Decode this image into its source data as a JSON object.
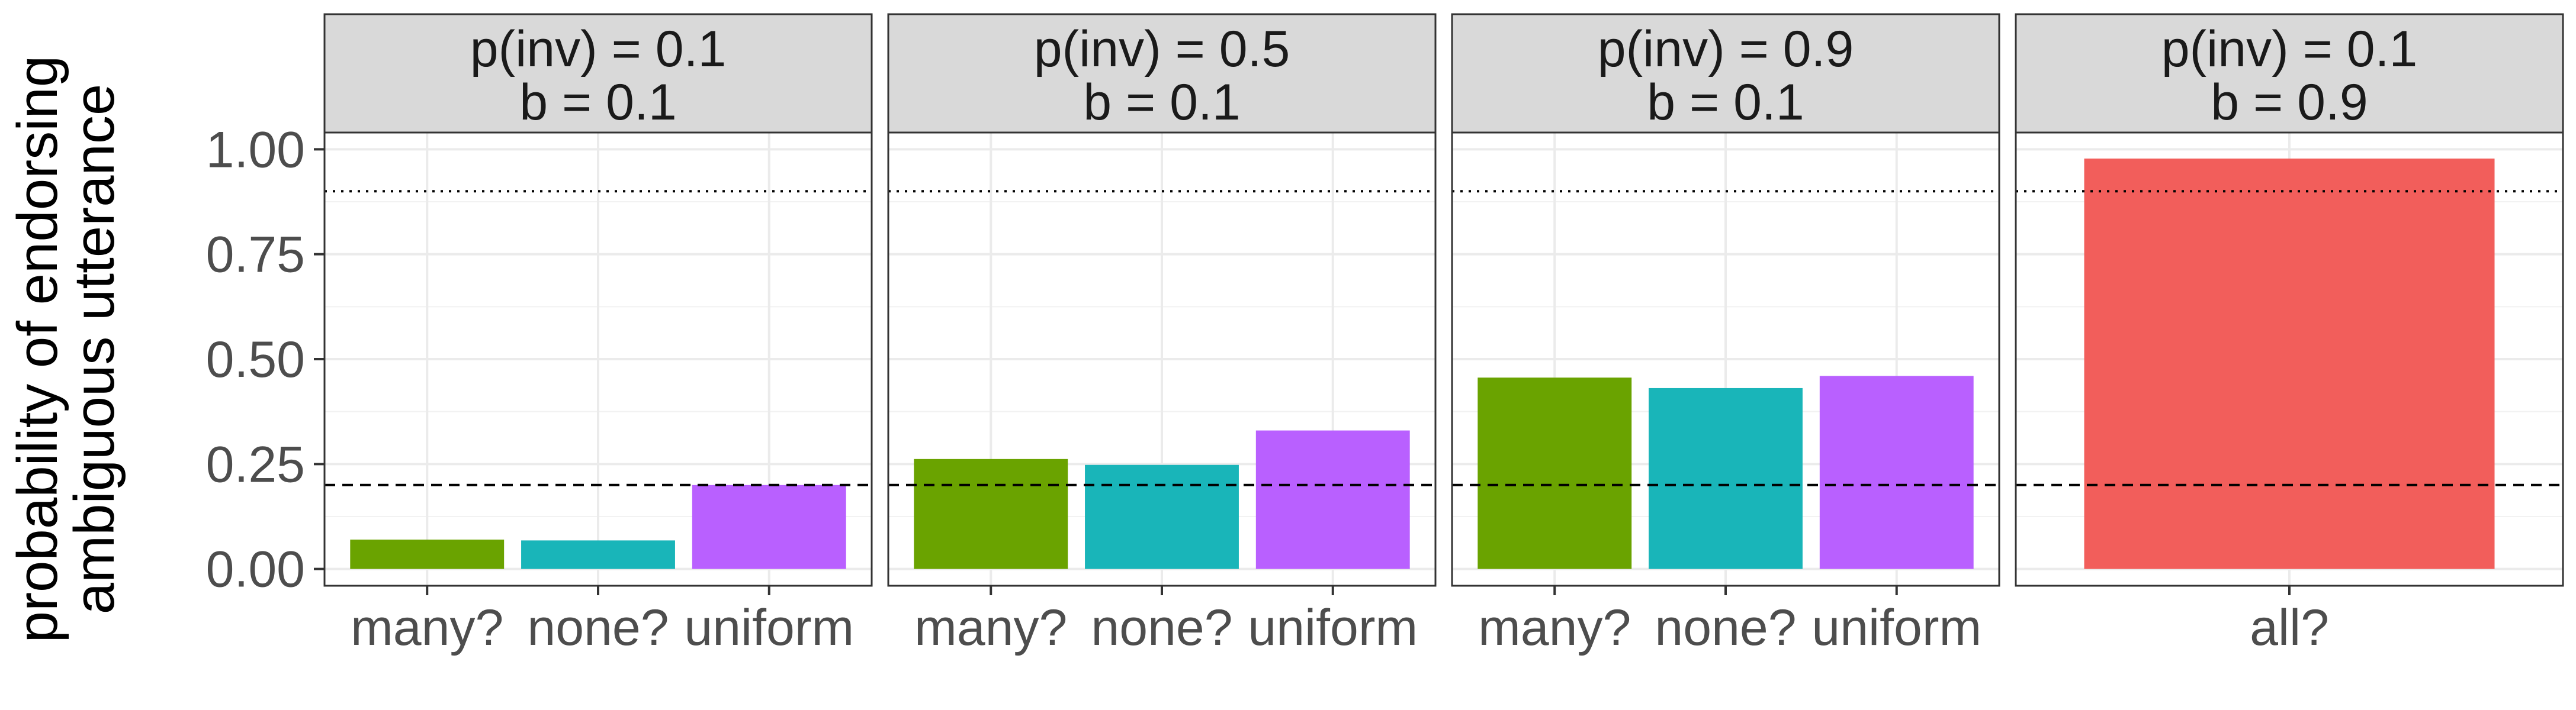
{
  "chart_data": {
    "type": "bar",
    "ylabel": [
      "probability of endorsing",
      "ambiguous utterance"
    ],
    "ylim": [
      -0.04,
      1.04
    ],
    "yticks": [
      0,
      0.25,
      0.5,
      0.75,
      1
    ],
    "ytick_labels": [
      "0.00",
      "0.25",
      "0.50",
      "0.75",
      "1.00"
    ],
    "grid": true,
    "reference_lines": [
      {
        "name": "dotted",
        "y": 0.9,
        "style": "dotted"
      },
      {
        "name": "dashed",
        "y": 0.2,
        "style": "dashed"
      }
    ],
    "colors": {
      "many?": "#6aa300",
      "none?": "#19b5b9",
      "uniform": "#b960ff",
      "all?": "#f25e5b"
    },
    "panels": [
      {
        "strip": [
          "p(inv) = 0.1",
          "b = 0.1"
        ],
        "categories": [
          "many?",
          "none?",
          "uniform"
        ],
        "values": [
          0.07,
          0.068,
          0.2
        ]
      },
      {
        "strip": [
          "p(inv) = 0.5",
          "b = 0.1"
        ],
        "categories": [
          "many?",
          "none?",
          "uniform"
        ],
        "values": [
          0.262,
          0.248,
          0.33
        ]
      },
      {
        "strip": [
          "p(inv) = 0.9",
          "b = 0.1"
        ],
        "categories": [
          "many?",
          "none?",
          "uniform"
        ],
        "values": [
          0.456,
          0.431,
          0.46
        ]
      },
      {
        "strip": [
          "p(inv) = 0.1",
          "b = 0.9"
        ],
        "categories": [
          "all?"
        ],
        "values": [
          0.978
        ]
      }
    ]
  }
}
